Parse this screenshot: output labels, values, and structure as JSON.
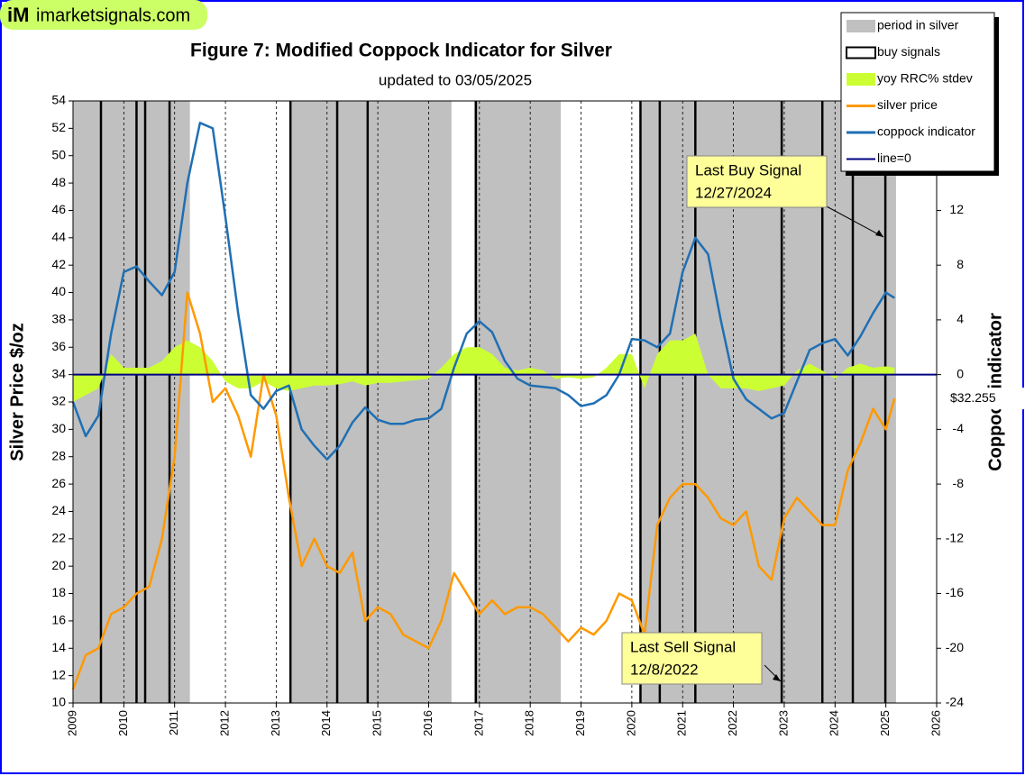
{
  "chart_data": {
    "type": "line",
    "logo": {
      "mark": "iM",
      "text": "imarketsignals.com"
    },
    "title": "Figure 7:  Modified Coppock Indicator for Silver",
    "subtitle": "updated to  03/05/2025",
    "y_label": "Silver Price  $/oz",
    "y2_label": "Coppock indicator",
    "price_label": "$32.255",
    "xlim": [
      2009,
      2026
    ],
    "xticks": [
      2009,
      2010,
      2011,
      2012,
      2013,
      2014,
      2015,
      2016,
      2017,
      2018,
      2019,
      2020,
      2021,
      2022,
      2023,
      2024,
      2025,
      2026
    ],
    "ylim": [
      10,
      54
    ],
    "yticks": [
      10,
      12,
      14,
      16,
      18,
      20,
      22,
      24,
      26,
      28,
      30,
      32,
      34,
      36,
      38,
      40,
      42,
      44,
      46,
      48,
      50,
      52,
      54
    ],
    "y2lim": [
      -24,
      20
    ],
    "y2ticks": [
      -24,
      -20,
      -16,
      -12,
      -8,
      -4,
      0,
      4,
      8,
      12
    ],
    "legend_position": "upper right",
    "periods": {
      "name": "period in silver",
      "color": "#c0c0c0",
      "ranges": [
        [
          2009.0,
          2011.3
        ],
        [
          2013.3,
          2016.45
        ],
        [
          2016.9,
          2018.6
        ],
        [
          2020.15,
          2025.2
        ]
      ]
    },
    "buy_signals": {
      "name": "buy signals",
      "color": "#000000",
      "x": [
        2009.55,
        2010.25,
        2010.42,
        2010.9,
        2013.28,
        2014.2,
        2014.8,
        2016.93,
        2020.17,
        2020.55,
        2021.25,
        2022.95,
        2023.75,
        2024.35,
        2024.99
      ]
    },
    "zero_line": {
      "name": "line=0",
      "color": "#000080",
      "value": 0
    },
    "x": [
      2009,
      2009.25,
      2009.5,
      2009.75,
      2010,
      2010.25,
      2010.5,
      2010.75,
      2011,
      2011.25,
      2011.5,
      2011.75,
      2012,
      2012.25,
      2012.5,
      2012.75,
      2013,
      2013.25,
      2013.5,
      2013.75,
      2014,
      2014.25,
      2014.5,
      2014.75,
      2015,
      2015.25,
      2015.5,
      2015.75,
      2016,
      2016.25,
      2016.5,
      2016.75,
      2017,
      2017.25,
      2017.5,
      2017.75,
      2018,
      2018.25,
      2018.5,
      2018.75,
      2019,
      2019.25,
      2019.5,
      2019.75,
      2020,
      2020.25,
      2020.5,
      2020.75,
      2021,
      2021.25,
      2021.5,
      2021.75,
      2022,
      2022.25,
      2022.5,
      2022.75,
      2023,
      2023.25,
      2023.5,
      2023.75,
      2024,
      2024.25,
      2024.5,
      2024.75,
      2025,
      2025.17
    ],
    "series": [
      {
        "name": "yoy RRC% stdev",
        "color": "#ccff33",
        "kind": "area",
        "axis": "y2",
        "values": [
          -2,
          -1.5,
          -1,
          1.5,
          0.5,
          0.5,
          0.5,
          1,
          2,
          2.5,
          2,
          1,
          -0.5,
          -1,
          -1,
          -0.5,
          -1,
          -1.2,
          -1,
          -0.8,
          -0.8,
          -0.7,
          -0.5,
          -0.8,
          -0.6,
          -0.6,
          -0.5,
          -0.4,
          -0.3,
          0.5,
          1.5,
          2,
          2,
          1.5,
          0.5,
          0.3,
          0.5,
          0.3,
          -0.3,
          -0.2,
          -0.3,
          -0.2,
          0.5,
          1.5,
          1.5,
          -1,
          1.5,
          2.5,
          2.5,
          3,
          0,
          -1,
          -1,
          -1,
          -1.2,
          -1,
          -0.8,
          0.3,
          0.8,
          0.3,
          -0.3,
          0.5,
          0.8,
          0.5,
          0.6,
          0.5
        ]
      },
      {
        "name": "silver price",
        "color": "#ff9900",
        "kind": "line",
        "values": [
          11,
          13.5,
          14,
          16.5,
          17,
          18,
          18.5,
          22,
          28,
          40,
          37,
          32,
          33,
          31,
          28,
          34,
          31,
          25,
          20,
          22,
          20,
          19.5,
          21,
          16,
          17,
          16.5,
          15,
          14.5,
          14,
          16,
          19.5,
          18,
          16.5,
          17.5,
          16.5,
          17,
          17,
          16.5,
          15.5,
          14.5,
          15.5,
          15,
          16,
          18,
          17.5,
          15,
          23,
          25,
          26,
          26,
          25,
          23.5,
          23,
          24,
          20,
          19,
          23.5,
          25,
          24,
          23,
          23,
          27,
          29,
          31.5,
          30,
          32.255
        ]
      },
      {
        "name": "coppock indicator",
        "color": "#1f6fb4",
        "kind": "line",
        "axis": "y2",
        "values": [
          -2,
          -4.5,
          -3,
          3,
          7.5,
          7.9,
          6.8,
          5.8,
          7.5,
          14,
          18.4,
          18,
          11.5,
          4.5,
          -1.5,
          -2.5,
          -1.2,
          -0.8,
          -4,
          -5.2,
          -6.2,
          -5.2,
          -3.5,
          -2.4,
          -3.3,
          -3.6,
          -3.6,
          -3.3,
          -3.2,
          -2.5,
          0.5,
          3,
          3.9,
          3.1,
          1,
          -0.3,
          -0.8,
          -0.9,
          -1,
          -1.5,
          -2.3,
          -2.1,
          -1.5,
          0,
          2.6,
          2.5,
          2,
          3,
          7.5,
          10,
          8.8,
          4,
          -0.3,
          -1.8,
          -2.5,
          -3.2,
          -2.8,
          -0.5,
          1.8,
          2.3,
          2.6,
          1.4,
          2.8,
          4.5,
          6,
          5.6
        ]
      }
    ],
    "annotations": [
      {
        "lines": [
          "Last Buy Signal",
          "12/27/2024"
        ]
      },
      {
        "lines": [
          "Last Sell Signal",
          "12/8/2022"
        ]
      }
    ]
  }
}
